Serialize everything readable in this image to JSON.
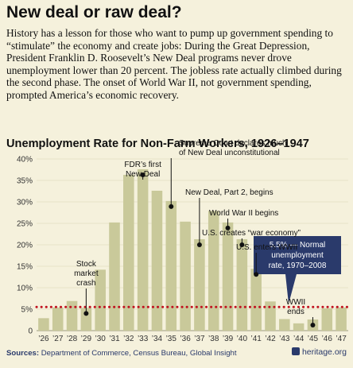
{
  "headline": "New deal or raw deal?",
  "intro": "History has a lesson for those who want to pump up government spending to “stimulate” the economy and create jobs: During the Great Depression, President Franklin D. Roosevelt’s New Deal programs never drove unemployment lower than 20 percent. The jobless rate actually climbed during the second phase. The onset of World War II, not government spending, prompted America’s economic recovery.",
  "source_label": "Sources:",
  "source_text": "Department of Commerce, Census Bureau, Global Insight",
  "logo_text": "heritage.org",
  "colors": {
    "background": "#f5f1dc",
    "bar": "#c9c99a",
    "grid": "#e7e3c8",
    "normal_line": "#c0121f",
    "callout_box": "#2a3a6b"
  },
  "chart_data": {
    "type": "bar",
    "title": "Unemployment Rate for Non-Farm Workers, 1926–1947",
    "categories": [
      "’26",
      "’27",
      "’28",
      "’29",
      "’30",
      "’31",
      "’32",
      "’33",
      "’34",
      "’35",
      "’36",
      "’37",
      "’38",
      "’39",
      "’40",
      "’41",
      "’42",
      "’43",
      "’44",
      "’45",
      "’46",
      "’47"
    ],
    "values": [
      2.9,
      5.4,
      6.9,
      5.3,
      14.2,
      25.2,
      36.3,
      37.6,
      32.6,
      30.2,
      25.4,
      21.3,
      27.9,
      25.2,
      21.3,
      14.4,
      6.8,
      2.7,
      1.7,
      2.6,
      5.2,
      5.4
    ],
    "ylim": [
      0,
      40
    ],
    "yticks": [
      "0",
      "5%",
      "10%",
      "15%",
      "20%",
      "25%",
      "30%",
      "35%",
      "40%"
    ],
    "grid": true,
    "reference_line": {
      "value": 5.5,
      "label": [
        "5.5% — Normal",
        "unemployment",
        "rate, 1970–2008"
      ]
    },
    "annotations": [
      {
        "year_index": 3,
        "text": [
          "Stock",
          "market",
          "crash"
        ]
      },
      {
        "year_index": 7,
        "text": [
          "FDR’s first",
          "New Deal"
        ]
      },
      {
        "year_index": 9,
        "text": [
          "Supreme Court declares much",
          "of New Deal unconstitutional"
        ]
      },
      {
        "year_index": 11,
        "text": [
          "New Deal, Part 2, begins"
        ]
      },
      {
        "year_index": 13,
        "text": [
          "World War II begins"
        ]
      },
      {
        "year_index": 14,
        "text": [
          "U.S. creates “war economy”"
        ]
      },
      {
        "year_index": 15,
        "text": [
          "U.S. enters WWII"
        ]
      },
      {
        "year_index": 19,
        "text": [
          "WWII",
          "ends"
        ]
      }
    ]
  }
}
